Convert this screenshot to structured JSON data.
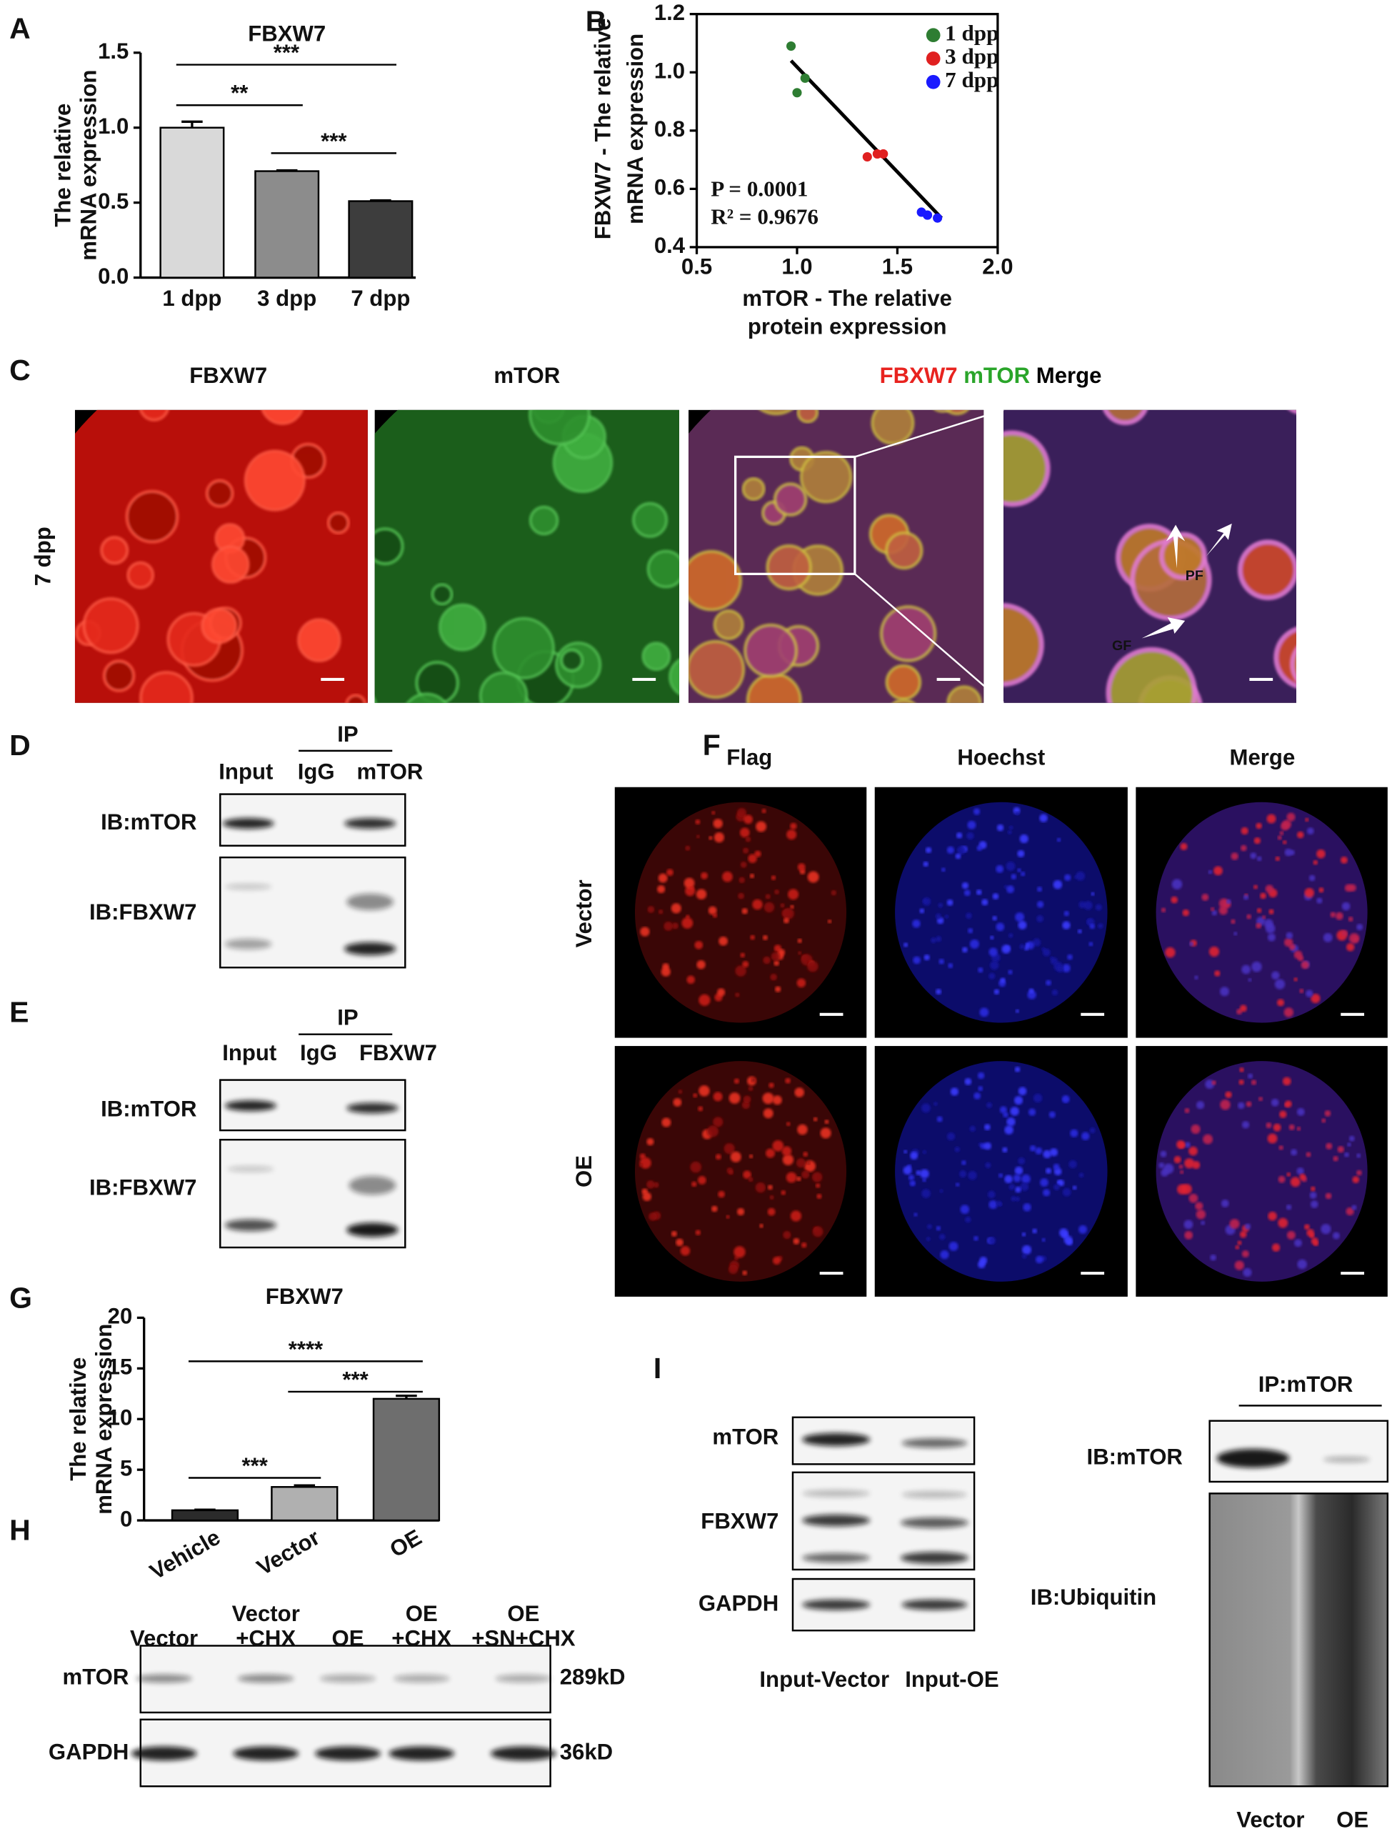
{
  "chart_data": [
    {
      "type": "bar",
      "title": "FBXW7",
      "y_label": [
        "The relative",
        "mRNA expression"
      ],
      "categories": [
        "1 dpp",
        "3 dpp",
        "7 dpp"
      ],
      "values": [
        1.0,
        0.71,
        0.51
      ],
      "errors": [
        0.04,
        0.005,
        0.005
      ],
      "colors": [
        "#d9d9d9",
        "#8c8c8c",
        "#3d3d3d"
      ],
      "ylim": [
        0,
        1.5
      ],
      "yticks": [
        {
          "value": 0,
          "label": "0.0"
        },
        {
          "value": 0.5,
          "label": "0.5"
        },
        {
          "value": 1,
          "label": "1.0"
        },
        {
          "value": 1.5,
          "label": "1.5"
        }
      ],
      "annotations": [
        "**",
        "***",
        "***"
      ]
    },
    {
      "type": "scatter",
      "x_label": [
        "mTOR - The relative",
        "protein expression"
      ],
      "y_label": [
        "FBXW7 - The relative",
        "mRNA expression"
      ],
      "xlim": [
        0.5,
        2.0
      ],
      "xticks": [
        0.5,
        {
          "value": 1,
          "label": "1.0"
        },
        1.5,
        {
          "value": 2,
          "label": "2.0"
        }
      ],
      "ylim": [
        0.4,
        1.2
      ],
      "yticks": [
        0.4,
        0.6,
        0.8,
        {
          "value": 1,
          "label": "1.0"
        },
        1.2
      ],
      "series": [
        {
          "name": "1 dpp",
          "color": "#2e7d32",
          "x": [
            0.97,
            1.0,
            1.04
          ],
          "values": [
            1.09,
            0.93,
            0.98
          ]
        },
        {
          "name": "3 dpp",
          "color": "#e02020",
          "x": [
            1.35,
            1.4,
            1.43
          ],
          "values": [
            0.71,
            0.72,
            0.72
          ]
        },
        {
          "name": "7 dpp",
          "color": "#1a1aff",
          "x": [
            1.62,
            1.65,
            1.7
          ],
          "values": [
            0.52,
            0.51,
            0.5
          ]
        }
      ],
      "fit": {
        "x": [
          0.97,
          1.72
        ],
        "values": [
          1.04,
          0.5
        ]
      },
      "legend": "upper right",
      "annotations": [
        "P = 0.0001",
        "R² = 0.9676"
      ]
    },
    {
      "type": "bar",
      "title": "FBXW7",
      "y_label": [
        "The relative",
        "mRNA expression"
      ],
      "categories": [
        "Vehicle",
        "Vector",
        "OE"
      ],
      "values": [
        1.0,
        3.3,
        12.0
      ],
      "errors": [
        0.05,
        0.15,
        0.3
      ],
      "colors": [
        "#2b2b2b",
        "#b0b0b0",
        "#6e6e6e"
      ],
      "ylim": [
        0,
        20
      ],
      "yticks": [
        0,
        5,
        10,
        15,
        20
      ],
      "annotations": [
        "****",
        "***",
        "***"
      ]
    }
  ],
  "letters": [
    "A",
    "B",
    "C",
    "D",
    "E",
    "F",
    "G",
    "H",
    "I"
  ],
  "C": {
    "headings": [
      "FBXW7",
      "mTOR"
    ],
    "merge_heading": [
      "FBXW7",
      "mTOR",
      "Merge"
    ],
    "row": "7 dpp",
    "arrows": [
      "PF",
      "GF"
    ]
  },
  "D": {
    "group": "IP",
    "columns": [
      "Input",
      "IgG",
      "mTOR"
    ],
    "rows": [
      "IB:mTOR",
      "IB:FBXW7"
    ]
  },
  "E": {
    "group": "IP",
    "columns": [
      "Input",
      "IgG",
      "FBXW7"
    ],
    "rows": [
      "IB:mTOR",
      "IB:FBXW7"
    ]
  },
  "F": {
    "columns": [
      "Flag",
      "Hoechst",
      "Merge"
    ],
    "rows": [
      "Vector",
      "OE"
    ]
  },
  "H": {
    "columns": [
      [
        "Vector"
      ],
      [
        "Vector",
        "+CHX"
      ],
      [
        "OE"
      ],
      [
        "OE",
        "+CHX"
      ],
      [
        "OE",
        "+SN+CHX"
      ]
    ],
    "rows": [
      "mTOR",
      "GAPDH"
    ],
    "sizes": [
      "289kD",
      "36kD"
    ]
  },
  "I": {
    "rows": [
      "mTOR",
      "FBXW7",
      "GAPDH"
    ],
    "columns": [
      "Input-Vector",
      "Input-OE"
    ],
    "group": "IP:mTOR",
    "ip_rows": [
      "IB:mTOR",
      "IB:Ubiquitin"
    ],
    "ip_columns": [
      "Vector",
      "OE"
    ]
  }
}
